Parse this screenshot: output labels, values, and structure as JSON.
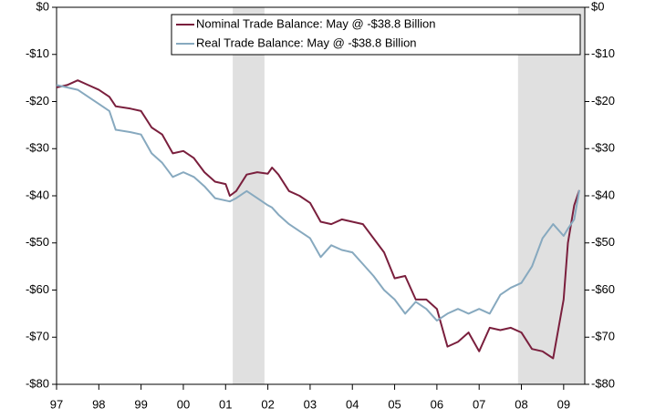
{
  "chart_data": {
    "type": "line",
    "x": [
      1997.0,
      1997.25,
      1997.5,
      1997.75,
      1998.0,
      1998.25,
      1998.4,
      1998.75,
      1999.0,
      1999.25,
      1999.5,
      1999.75,
      2000.0,
      2000.25,
      2000.5,
      2000.75,
      2001.0,
      2001.1,
      2001.25,
      2001.5,
      2001.75,
      2002.0,
      2002.1,
      2002.25,
      2002.5,
      2002.75,
      2003.0,
      2003.25,
      2003.5,
      2003.75,
      2004.0,
      2004.25,
      2004.5,
      2004.75,
      2005.0,
      2005.25,
      2005.5,
      2005.75,
      2006.0,
      2006.25,
      2006.5,
      2006.75,
      2007.0,
      2007.25,
      2007.5,
      2007.75,
      2008.0,
      2008.25,
      2008.5,
      2008.75,
      2009.0,
      2009.1,
      2009.25,
      2009.37
    ],
    "series": [
      {
        "name": "Nominal Trade Balance: May @ -$38.8 Billion",
        "color": "#7a1f3d",
        "values": [
          -17,
          -16.5,
          -15.5,
          -16.5,
          -17.5,
          -19,
          -21,
          -21.5,
          -22,
          -25.5,
          -27,
          -31,
          -30.5,
          -32,
          -35,
          -37,
          -37.5,
          -40,
          -39,
          -35.5,
          -35,
          -35.3,
          -34,
          -35.5,
          -39,
          -40,
          -41.5,
          -45.5,
          -46,
          -45,
          -45.5,
          -46,
          -49,
          -52,
          -57.5,
          -57,
          -62,
          -62,
          -64,
          -72,
          -71,
          -69,
          -73,
          -68,
          -68.5,
          -68,
          -69,
          -72.5,
          -73,
          -74.5,
          -62,
          -50,
          -42,
          -38.8
        ]
      },
      {
        "name": "Real Trade Balance: May @ -$38.8 Billion",
        "color": "#87a9bf",
        "values": [
          -16.5,
          -17,
          -17.5,
          -19,
          -20.5,
          -22,
          -26,
          -26.5,
          -27,
          -31,
          -33,
          -36,
          -35,
          -36,
          -38,
          -40.5,
          -41,
          -41.2,
          -40.5,
          -39,
          -40.5,
          -42,
          -42.5,
          -44,
          -46,
          -47.5,
          -49,
          -53,
          -50.5,
          -51.5,
          -52,
          -54.5,
          -57,
          -60,
          -62,
          -65,
          -62.5,
          -64,
          -66.5,
          -65,
          -64,
          -65,
          -64,
          -65,
          -61,
          -59.5,
          -58.5,
          -55,
          -49,
          -46,
          -48.5,
          -47,
          -45,
          -38.8
        ]
      }
    ],
    "xlim": [
      1997,
      2009.5
    ],
    "xticks": [
      {
        "value": 1997,
        "label": "97"
      },
      {
        "value": 1998,
        "label": "98"
      },
      {
        "value": 1999,
        "label": "99"
      },
      {
        "value": 2000,
        "label": "00"
      },
      {
        "value": 2001,
        "label": "01"
      },
      {
        "value": 2002,
        "label": "02"
      },
      {
        "value": 2003,
        "label": "03"
      },
      {
        "value": 2004,
        "label": "04"
      },
      {
        "value": 2005,
        "label": "05"
      },
      {
        "value": 2006,
        "label": "06"
      },
      {
        "value": 2007,
        "label": "07"
      },
      {
        "value": 2008,
        "label": "08"
      },
      {
        "value": 2009,
        "label": "09"
      }
    ],
    "ylim": [
      -80,
      0
    ],
    "yticks": [
      {
        "value": 0,
        "label": "$0"
      },
      {
        "value": -10,
        "label": "-$10"
      },
      {
        "value": -20,
        "label": "-$20"
      },
      {
        "value": -30,
        "label": "-$30"
      },
      {
        "value": -40,
        "label": "-$40"
      },
      {
        "value": -50,
        "label": "-$50"
      },
      {
        "value": -60,
        "label": "-$60"
      },
      {
        "value": -70,
        "label": "-$70"
      },
      {
        "value": -80,
        "label": "-$80"
      }
    ],
    "y2lim": [
      -80,
      0
    ],
    "y2ticks": [
      {
        "value": 0,
        "label": "$0"
      },
      {
        "value": -10,
        "label": "-$10"
      },
      {
        "value": -20,
        "label": "-$20"
      },
      {
        "value": -30,
        "label": "-$30"
      },
      {
        "value": -40,
        "label": "-$40"
      },
      {
        "value": -50,
        "label": "-$50"
      },
      {
        "value": -60,
        "label": "-$60"
      },
      {
        "value": -70,
        "label": "-$70"
      },
      {
        "value": -80,
        "label": "-$80"
      }
    ],
    "shaded_ranges": [
      [
        2001.17,
        2001.92
      ],
      [
        2007.92,
        2009.5
      ]
    ],
    "shade_color": "#e0e0e0",
    "legend": "upper right"
  }
}
